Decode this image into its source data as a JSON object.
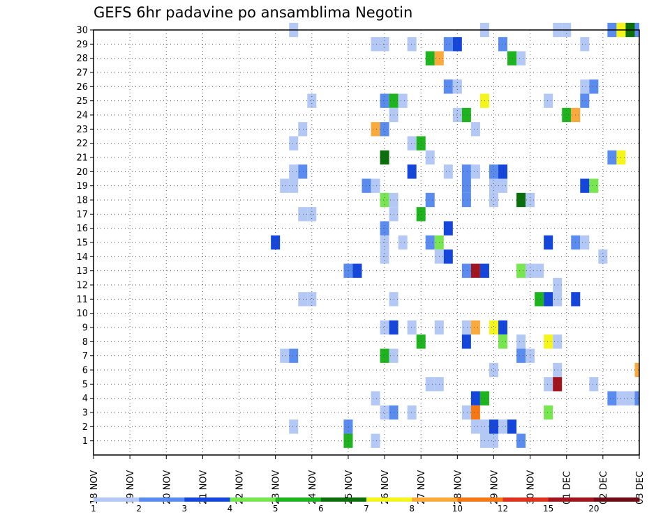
{
  "chart_data": {
    "type": "heatmap",
    "title": "GEFS 6hr padavine po ansamblima Negotin",
    "xlabel": "",
    "ylabel": "",
    "x_tick_labels": [
      "18 NOV",
      "19 NOV",
      "20 NOV",
      "21 NOV",
      "22 NOV",
      "23 NOV",
      "24 NOV",
      "25 NOV",
      "26 NOV",
      "27 NOV",
      "28 NOV",
      "29 NOV",
      "30 NOV",
      "01 DEC",
      "02 DEC",
      "03 DEC"
    ],
    "y_tick_labels": [
      "1",
      "2",
      "3",
      "4",
      "5",
      "6",
      "7",
      "8",
      "9",
      "10",
      "11",
      "12",
      "13",
      "14",
      "15",
      "16",
      "17",
      "18",
      "19",
      "20",
      "21",
      "22",
      "23",
      "24",
      "25",
      "26",
      "27",
      "28",
      "29",
      "30"
    ],
    "x_range_days": [
      0,
      15
    ],
    "y_range_members": [
      0,
      30
    ],
    "grid": true,
    "legend_placement": "bottom",
    "legend": {
      "labels": [
        "1",
        "2",
        "3",
        "4",
        "5",
        "6",
        "7",
        "8",
        "10",
        "12",
        "15",
        "20"
      ],
      "colors": [
        "#b4c8f5",
        "#5a8cf0",
        "#1446dc",
        "#78e650",
        "#1eb41e",
        "#0a6e0a",
        "#f5f51e",
        "#faaa3c",
        "#f57814",
        "#dc321e",
        "#a0141e",
        "#6e0a14"
      ]
    },
    "cells": [
      {
        "m": 30,
        "d": 5.5,
        "c": 1
      },
      {
        "m": 30,
        "d": 10.75,
        "c": 1
      },
      {
        "m": 30,
        "d": 12.75,
        "c": 1
      },
      {
        "m": 30,
        "d": 13,
        "c": 1
      },
      {
        "m": 30,
        "d": 14.25,
        "c": 2
      },
      {
        "m": 30,
        "d": 14.5,
        "c": 7
      },
      {
        "m": 30,
        "d": 14.75,
        "c": 6
      },
      {
        "m": 30,
        "d": 15,
        "c": 2
      },
      {
        "m": 29,
        "d": 7.75,
        "c": 1
      },
      {
        "m": 29,
        "d": 8,
        "c": 1
      },
      {
        "m": 29,
        "d": 8.75,
        "c": 1
      },
      {
        "m": 29,
        "d": 9.75,
        "c": 2
      },
      {
        "m": 29,
        "d": 10,
        "c": 3
      },
      {
        "m": 29,
        "d": 11.25,
        "c": 2
      },
      {
        "m": 29,
        "d": 13.5,
        "c": 1
      },
      {
        "m": 28,
        "d": 9.25,
        "c": 5
      },
      {
        "m": 28,
        "d": 9.5,
        "c": 8
      },
      {
        "m": 28,
        "d": 11.5,
        "c": 5
      },
      {
        "m": 28,
        "d": 11.75,
        "c": 1
      },
      {
        "m": 26,
        "d": 9.75,
        "c": 2
      },
      {
        "m": 26,
        "d": 10,
        "c": 1
      },
      {
        "m": 26,
        "d": 13.5,
        "c": 1
      },
      {
        "m": 26,
        "d": 13.75,
        "c": 2
      },
      {
        "m": 25,
        "d": 6,
        "c": 1
      },
      {
        "m": 25,
        "d": 8,
        "c": 2
      },
      {
        "m": 25,
        "d": 8.25,
        "c": 5
      },
      {
        "m": 25,
        "d": 8.5,
        "c": 1
      },
      {
        "m": 25,
        "d": 10.75,
        "c": 7
      },
      {
        "m": 25,
        "d": 12.5,
        "c": 1
      },
      {
        "m": 25,
        "d": 13.5,
        "c": 2
      },
      {
        "m": 24,
        "d": 8.25,
        "c": 1
      },
      {
        "m": 24,
        "d": 10,
        "c": 1
      },
      {
        "m": 24,
        "d": 10.25,
        "c": 5
      },
      {
        "m": 24,
        "d": 13,
        "c": 5
      },
      {
        "m": 24,
        "d": 13.25,
        "c": 8
      },
      {
        "m": 23,
        "d": 5.75,
        "c": 1
      },
      {
        "m": 23,
        "d": 7.75,
        "c": 8
      },
      {
        "m": 23,
        "d": 8,
        "c": 2
      },
      {
        "m": 23,
        "d": 10.5,
        "c": 1
      },
      {
        "m": 22,
        "d": 5.5,
        "c": 1
      },
      {
        "m": 22,
        "d": 8.75,
        "c": 1
      },
      {
        "m": 22,
        "d": 9,
        "c": 5
      },
      {
        "m": 21,
        "d": 8,
        "c": 6
      },
      {
        "m": 21,
        "d": 9.25,
        "c": 1
      },
      {
        "m": 21,
        "d": 14.25,
        "c": 2
      },
      {
        "m": 21,
        "d": 14.5,
        "c": 7
      },
      {
        "m": 20,
        "d": 5.5,
        "c": 1
      },
      {
        "m": 20,
        "d": 5.75,
        "c": 2
      },
      {
        "m": 20,
        "d": 8.75,
        "c": 3
      },
      {
        "m": 20,
        "d": 9.75,
        "c": 1
      },
      {
        "m": 20,
        "d": 10.25,
        "c": 2
      },
      {
        "m": 20,
        "d": 10.5,
        "c": 1
      },
      {
        "m": 20,
        "d": 11,
        "c": 2
      },
      {
        "m": 20,
        "d": 11.25,
        "c": 3
      },
      {
        "m": 19,
        "d": 5.25,
        "c": 1
      },
      {
        "m": 19,
        "d": 5.5,
        "c": 1
      },
      {
        "m": 19,
        "d": 7.5,
        "c": 2
      },
      {
        "m": 19,
        "d": 7.75,
        "c": 1
      },
      {
        "m": 19,
        "d": 10.25,
        "c": 2
      },
      {
        "m": 19,
        "d": 11,
        "c": 1
      },
      {
        "m": 19,
        "d": 11.25,
        "c": 1
      },
      {
        "m": 19,
        "d": 13.5,
        "c": 3
      },
      {
        "m": 19,
        "d": 13.75,
        "c": 4
      },
      {
        "m": 18,
        "d": 8,
        "c": 4
      },
      {
        "m": 18,
        "d": 8.25,
        "c": 1
      },
      {
        "m": 18,
        "d": 9.25,
        "c": 2
      },
      {
        "m": 18,
        "d": 10.25,
        "c": 2
      },
      {
        "m": 18,
        "d": 11,
        "c": 1
      },
      {
        "m": 18,
        "d": 11.75,
        "c": 6
      },
      {
        "m": 18,
        "d": 12,
        "c": 1
      },
      {
        "m": 17,
        "d": 5.75,
        "c": 1
      },
      {
        "m": 17,
        "d": 6,
        "c": 1
      },
      {
        "m": 17,
        "d": 8.25,
        "c": 1
      },
      {
        "m": 17,
        "d": 9,
        "c": 5
      },
      {
        "m": 16,
        "d": 8,
        "c": 2
      },
      {
        "m": 16,
        "d": 9.75,
        "c": 3
      },
      {
        "m": 15,
        "d": 5,
        "c": 3
      },
      {
        "m": 15,
        "d": 8,
        "c": 1
      },
      {
        "m": 15,
        "d": 8.5,
        "c": 1
      },
      {
        "m": 15,
        "d": 9.25,
        "c": 2
      },
      {
        "m": 15,
        "d": 9.5,
        "c": 4
      },
      {
        "m": 15,
        "d": 12.5,
        "c": 3
      },
      {
        "m": 15,
        "d": 13.25,
        "c": 2
      },
      {
        "m": 15,
        "d": 13.5,
        "c": 1
      },
      {
        "m": 14,
        "d": 8,
        "c": 1
      },
      {
        "m": 14,
        "d": 9.5,
        "c": 1
      },
      {
        "m": 14,
        "d": 9.75,
        "c": 3
      },
      {
        "m": 14,
        "d": 14,
        "c": 1
      },
      {
        "m": 13,
        "d": 7,
        "c": 2
      },
      {
        "m": 13,
        "d": 7.25,
        "c": 3
      },
      {
        "m": 13,
        "d": 10.25,
        "c": 2
      },
      {
        "m": 13,
        "d": 10.5,
        "c": 11
      },
      {
        "m": 13,
        "d": 10.75,
        "c": 3
      },
      {
        "m": 13,
        "d": 11.75,
        "c": 4
      },
      {
        "m": 13,
        "d": 12,
        "c": 1
      },
      {
        "m": 13,
        "d": 12.25,
        "c": 1
      },
      {
        "m": 12,
        "d": 12.75,
        "c": 1
      },
      {
        "m": 11,
        "d": 5.75,
        "c": 1
      },
      {
        "m": 11,
        "d": 6,
        "c": 1
      },
      {
        "m": 11,
        "d": 8.25,
        "c": 1
      },
      {
        "m": 11,
        "d": 12.25,
        "c": 5
      },
      {
        "m": 11,
        "d": 12.5,
        "c": 3
      },
      {
        "m": 11,
        "d": 12.75,
        "c": 1
      },
      {
        "m": 11,
        "d": 13.25,
        "c": 3
      },
      {
        "m": 9,
        "d": 8,
        "c": 1
      },
      {
        "m": 9,
        "d": 8.25,
        "c": 3
      },
      {
        "m": 9,
        "d": 8.75,
        "c": 1
      },
      {
        "m": 9,
        "d": 9.5,
        "c": 1
      },
      {
        "m": 9,
        "d": 10.25,
        "c": 1
      },
      {
        "m": 9,
        "d": 10.5,
        "c": 8
      },
      {
        "m": 9,
        "d": 11,
        "c": 7
      },
      {
        "m": 9,
        "d": 11.25,
        "c": 3
      },
      {
        "m": 8,
        "d": 9,
        "c": 5
      },
      {
        "m": 8,
        "d": 10.25,
        "c": 3
      },
      {
        "m": 8,
        "d": 11.25,
        "c": 4
      },
      {
        "m": 8,
        "d": 11.75,
        "c": 1
      },
      {
        "m": 8,
        "d": 12.5,
        "c": 7
      },
      {
        "m": 8,
        "d": 12.75,
        "c": 1
      },
      {
        "m": 7,
        "d": 5.25,
        "c": 1
      },
      {
        "m": 7,
        "d": 5.5,
        "c": 2
      },
      {
        "m": 7,
        "d": 8,
        "c": 5
      },
      {
        "m": 7,
        "d": 8.25,
        "c": 1
      },
      {
        "m": 7,
        "d": 11.75,
        "c": 2
      },
      {
        "m": 7,
        "d": 12,
        "c": 1
      },
      {
        "m": 6,
        "d": 11,
        "c": 1
      },
      {
        "m": 6,
        "d": 12.75,
        "c": 1
      },
      {
        "m": 6,
        "d": 15,
        "c": 8
      },
      {
        "m": 5,
        "d": 9.25,
        "c": 1
      },
      {
        "m": 5,
        "d": 9.5,
        "c": 1
      },
      {
        "m": 5,
        "d": 12.5,
        "c": 1
      },
      {
        "m": 5,
        "d": 12.75,
        "c": 11
      },
      {
        "m": 5,
        "d": 13.75,
        "c": 1
      },
      {
        "m": 4,
        "d": 7.75,
        "c": 1
      },
      {
        "m": 4,
        "d": 10.5,
        "c": 3
      },
      {
        "m": 4,
        "d": 10.75,
        "c": 5
      },
      {
        "m": 4,
        "d": 14.25,
        "c": 2
      },
      {
        "m": 4,
        "d": 14.5,
        "c": 1
      },
      {
        "m": 4,
        "d": 14.75,
        "c": 1
      },
      {
        "m": 4,
        "d": 15,
        "c": 2
      },
      {
        "m": 3,
        "d": 8,
        "c": 1
      },
      {
        "m": 3,
        "d": 8.25,
        "c": 2
      },
      {
        "m": 3,
        "d": 8.75,
        "c": 1
      },
      {
        "m": 3,
        "d": 10.25,
        "c": 1
      },
      {
        "m": 3,
        "d": 10.5,
        "c": 9
      },
      {
        "m": 3,
        "d": 12.5,
        "c": 4
      },
      {
        "m": 2,
        "d": 5.5,
        "c": 1
      },
      {
        "m": 2,
        "d": 7,
        "c": 2
      },
      {
        "m": 2,
        "d": 10.5,
        "c": 1
      },
      {
        "m": 2,
        "d": 10.75,
        "c": 1
      },
      {
        "m": 2,
        "d": 11,
        "c": 3
      },
      {
        "m": 2,
        "d": 11.25,
        "c": 1
      },
      {
        "m": 2,
        "d": 11.5,
        "c": 3
      },
      {
        "m": 1,
        "d": 7,
        "c": 5
      },
      {
        "m": 1,
        "d": 7.75,
        "c": 1
      },
      {
        "m": 1,
        "d": 10.75,
        "c": 1
      },
      {
        "m": 1,
        "d": 11,
        "c": 1
      },
      {
        "m": 1,
        "d": 11.75,
        "c": 2
      }
    ]
  }
}
